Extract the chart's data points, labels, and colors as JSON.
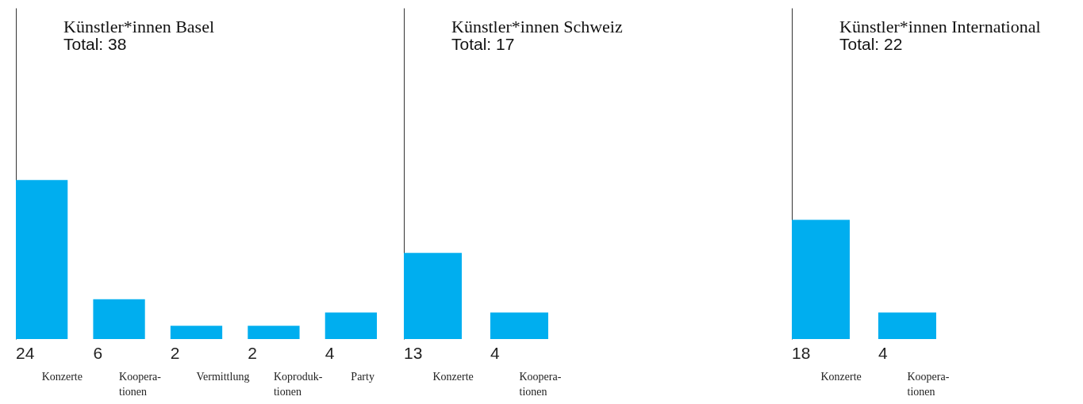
{
  "chart_data": [
    {
      "type": "bar",
      "title": "Künstler*innen Basel",
      "subtitle": "Total: 38",
      "categories": [
        "Konzerte",
        "Koopera-\ntionen",
        "Vermittlung",
        "Koproduk-\ntionen",
        "Party"
      ],
      "values": [
        24,
        6,
        2,
        2,
        4
      ],
      "color": "#00aeef",
      "ylim": [
        0,
        50
      ],
      "data_labels": true,
      "tick_labels": "x"
    },
    {
      "type": "bar",
      "title": "Künstler*innen Schweiz",
      "subtitle": "Total: 17",
      "categories": [
        "Konzerte",
        "Koopera-\ntionen"
      ],
      "values": [
        13,
        4
      ],
      "color": "#00aeef",
      "ylim": [
        0,
        50
      ],
      "data_labels": true,
      "tick_labels": "x"
    },
    {
      "type": "bar",
      "title": "Künstler*innen International",
      "subtitle": "Total: 22",
      "categories": [
        "Konzerte",
        "Koopera-\ntionen"
      ],
      "values": [
        18,
        4
      ],
      "color": "#00aeef",
      "ylim": [
        0,
        50
      ],
      "data_labels": true,
      "tick_labels": "x"
    }
  ]
}
